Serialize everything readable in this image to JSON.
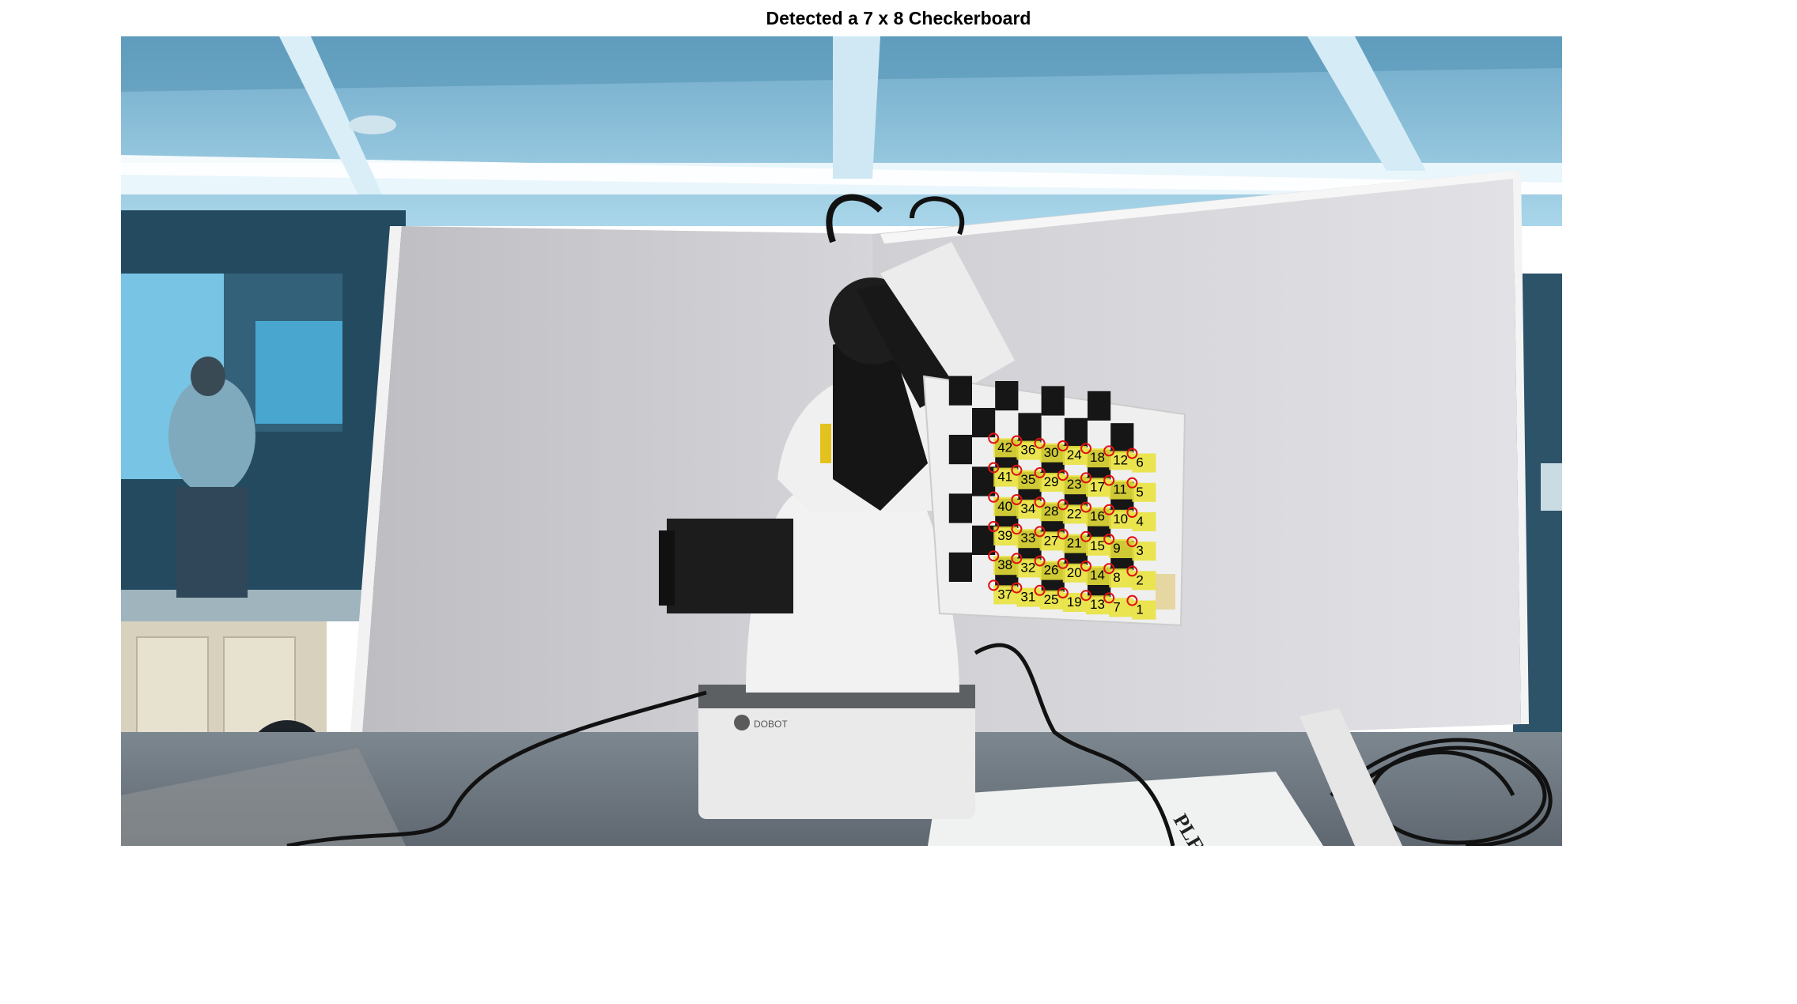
{
  "figure": {
    "title": "Detected a 7 x 8 Checkerboard"
  },
  "checkerboard": {
    "rows": 6,
    "cols": 7,
    "columns": [
      [
        37,
        38,
        39,
        40,
        41,
        42
      ],
      [
        31,
        32,
        33,
        34,
        35,
        36
      ],
      [
        25,
        26,
        27,
        28,
        29,
        30
      ],
      [
        19,
        20,
        21,
        22,
        23,
        24
      ],
      [
        13,
        14,
        15,
        16,
        17,
        18
      ],
      [
        7,
        8,
        9,
        10,
        11,
        12
      ],
      [
        1,
        2,
        3,
        4,
        5,
        6
      ]
    ],
    "label_color": "#e8e23a",
    "marker_color": "#e01010"
  },
  "scene": {
    "robot_base_brand": "DOBOT",
    "sign_text": "PLEASE CLEAN"
  }
}
